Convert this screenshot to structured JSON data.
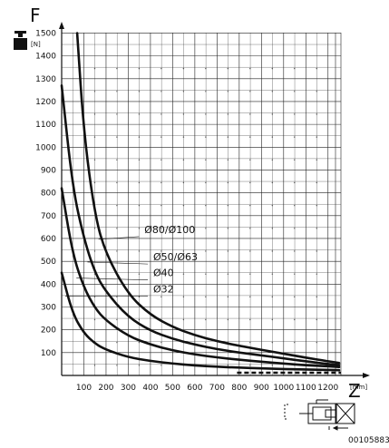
{
  "chart_data": {
    "type": "line",
    "y_axis_symbol": "F",
    "y_unit": "[N]",
    "x_axis_symbol": "Z",
    "x_unit": "[mm]",
    "xlim": [
      0,
      1250
    ],
    "ylim": [
      0,
      1500
    ],
    "x_ticks": [
      100,
      200,
      300,
      400,
      500,
      600,
      700,
      800,
      900,
      1000,
      1100,
      1200
    ],
    "y_ticks": [
      100,
      200,
      300,
      400,
      500,
      600,
      700,
      800,
      900,
      1000,
      1100,
      1200,
      1300,
      1400,
      1500
    ],
    "grid": true,
    "series": [
      {
        "name": "Ø80/Ø100",
        "label_value": [
          340,
          640
        ],
        "x": [
          70,
          100,
          150,
          200,
          300,
          400,
          500,
          600,
          700,
          800,
          900,
          1000,
          1100,
          1200,
          1250
        ],
        "y": [
          1500,
          1060,
          700,
          530,
          355,
          265,
          212,
          176,
          150,
          130,
          112,
          95,
          78,
          62,
          55
        ]
      },
      {
        "name": "Ø50/Ø63",
        "label_value": [
          380,
          520
        ],
        "x": [
          0,
          50,
          100,
          150,
          200,
          300,
          400,
          500,
          600,
          700,
          800,
          900,
          1000,
          1100,
          1200,
          1250
        ],
        "y": [
          1270,
          820,
          600,
          450,
          365,
          255,
          196,
          160,
          135,
          115,
          100,
          88,
          75,
          62,
          50,
          45
        ]
      },
      {
        "name": "Ø40",
        "label_value": [
          380,
          450
        ],
        "x": [
          0,
          50,
          100,
          150,
          200,
          300,
          400,
          500,
          600,
          700,
          800,
          900,
          1000,
          1100,
          1200,
          1250
        ],
        "y": [
          820,
          530,
          385,
          295,
          240,
          172,
          135,
          110,
          92,
          79,
          69,
          60,
          52,
          45,
          40,
          37
        ]
      },
      {
        "name": "Ø32",
        "label_value": [
          380,
          380
        ],
        "x": [
          0,
          50,
          100,
          150,
          200,
          300,
          400,
          500,
          600,
          700,
          800,
          900,
          1000,
          1100,
          1200,
          1250
        ],
        "y": [
          450,
          270,
          185,
          140,
          112,
          80,
          63,
          52,
          44,
          38,
          34,
          31,
          28,
          26,
          24,
          23
        ]
      }
    ],
    "doc_id": "00105883",
    "colors": {
      "curve": "#111111",
      "grid": "#222222",
      "dots": "#555555"
    }
  }
}
